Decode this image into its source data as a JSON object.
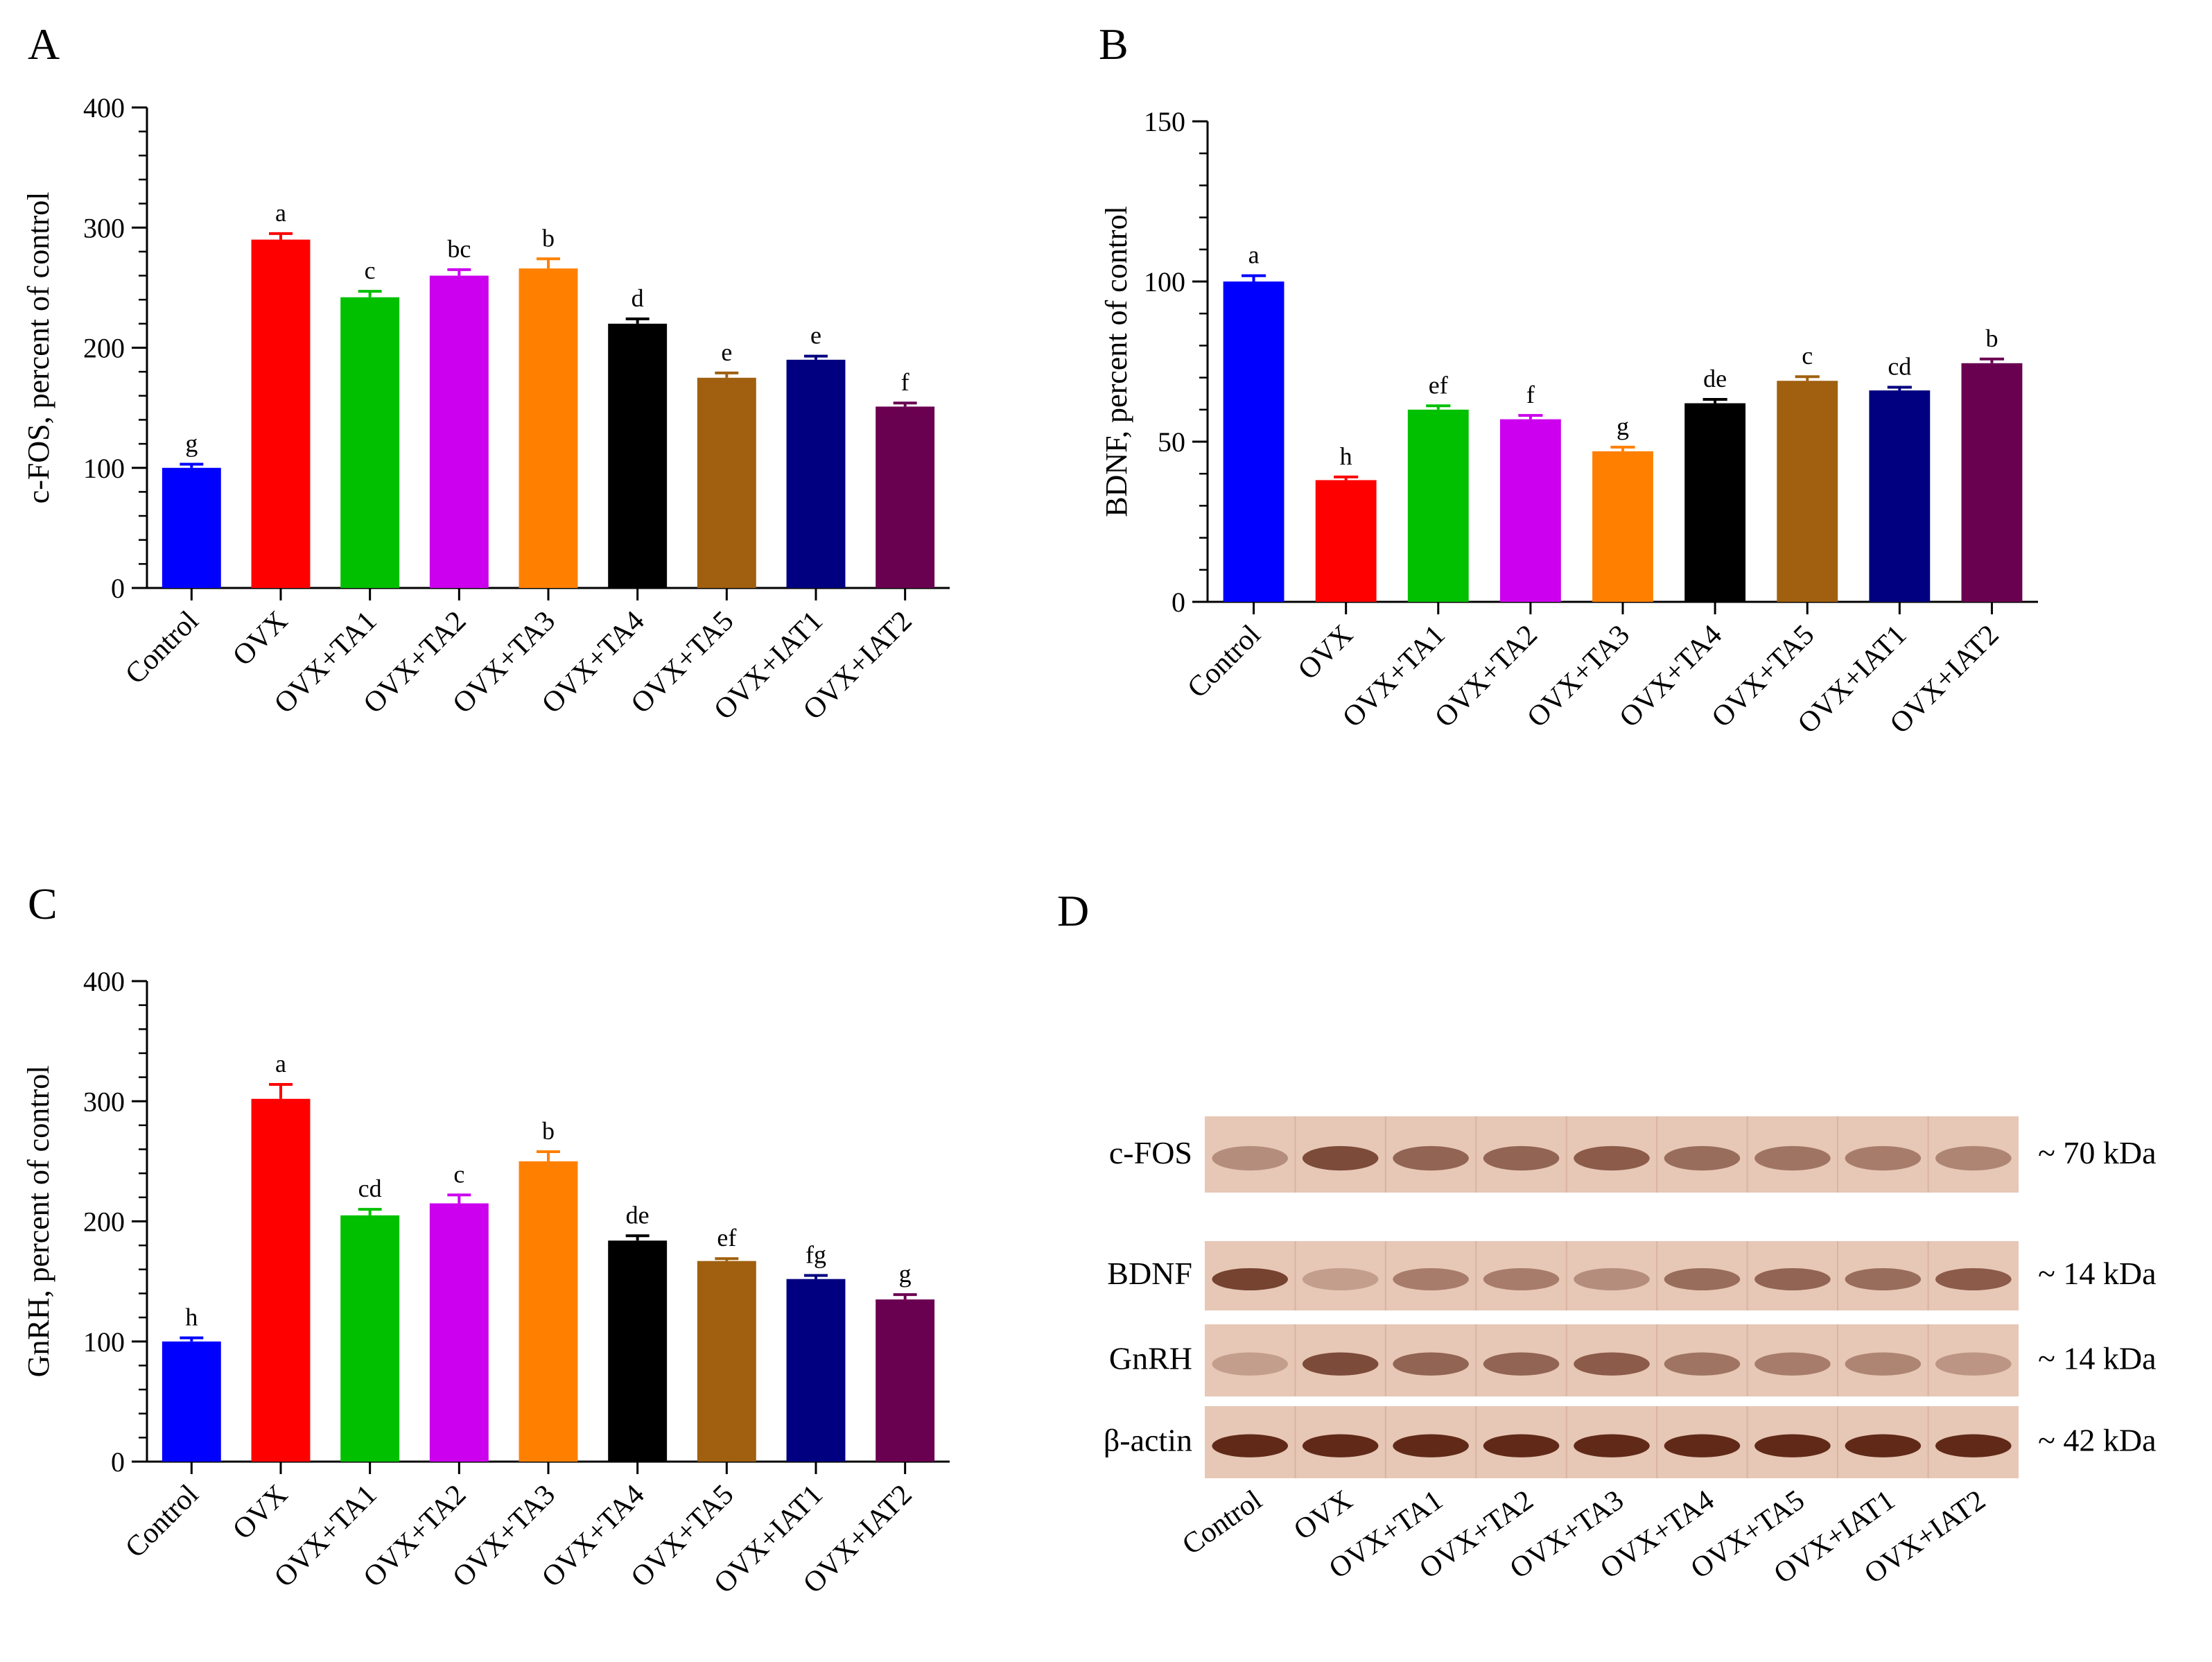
{
  "chart_data": [
    {
      "panel": "A",
      "type": "bar",
      "ylabel": "c-FOS, percent of control",
      "ylim": [
        0,
        400
      ],
      "yticks": [
        0,
        100,
        200,
        300,
        400
      ],
      "categories": [
        "Control",
        "OVX",
        "OVX+TA1",
        "OVX+TA2",
        "OVX+TA3",
        "OVX+TA4",
        "OVX+TA5",
        "OVX+IAT1",
        "OVX+IAT2"
      ],
      "values": [
        100,
        290,
        242,
        260,
        266,
        220,
        175,
        190,
        151
      ],
      "errors": [
        3,
        5,
        5,
        5,
        8,
        4,
        4,
        3,
        3
      ],
      "significance": [
        "g",
        "a",
        "c",
        "bc",
        "b",
        "d",
        "e",
        "e",
        "f"
      ],
      "colors": [
        "#0000ff",
        "#ff0000",
        "#00c000",
        "#cc00ee",
        "#ff8000",
        "#000000",
        "#a0600f",
        "#000080",
        "#6a0050"
      ]
    },
    {
      "panel": "B",
      "type": "bar",
      "ylabel": "BDNF, percent of control",
      "ylim": [
        0,
        150
      ],
      "yticks": [
        0,
        50,
        100,
        150
      ],
      "categories": [
        "Control",
        "OVX",
        "OVX+TA1",
        "OVX+TA2",
        "OVX+TA3",
        "OVX+TA4",
        "OVX+TA5",
        "OVX+IAT1",
        "OVX+IAT2"
      ],
      "values": [
        100,
        38,
        60,
        57,
        47,
        62,
        69,
        66,
        74.5
      ],
      "errors": [
        1.8,
        1,
        1.2,
        1.2,
        1.3,
        1.2,
        1.3,
        1,
        1.3
      ],
      "significance": [
        "a",
        "h",
        "ef",
        "f",
        "g",
        "de",
        "c",
        "cd",
        "b"
      ],
      "colors": [
        "#0000ff",
        "#ff0000",
        "#00c000",
        "#cc00ee",
        "#ff8000",
        "#000000",
        "#a0600f",
        "#000080",
        "#6a0050"
      ]
    },
    {
      "panel": "C",
      "type": "bar",
      "ylabel": "GnRH, percent of control",
      "ylim": [
        0,
        400
      ],
      "yticks": [
        0,
        100,
        200,
        300,
        400
      ],
      "categories": [
        "Control",
        "OVX",
        "OVX+TA1",
        "OVX+TA2",
        "OVX+TA3",
        "OVX+TA4",
        "OVX+TA5",
        "OVX+IAT1",
        "OVX+IAT2"
      ],
      "values": [
        100,
        302,
        205,
        215,
        250,
        184,
        167,
        152,
        135
      ],
      "errors": [
        3,
        12,
        5,
        7,
        8,
        4,
        2,
        3,
        4
      ],
      "significance": [
        "h",
        "a",
        "cd",
        "c",
        "b",
        "de",
        "ef",
        "fg",
        "g"
      ],
      "colors": [
        "#0000ff",
        "#ff0000",
        "#00c000",
        "#cc00ee",
        "#ff8000",
        "#000000",
        "#a0600f",
        "#000080",
        "#6a0050"
      ]
    }
  ],
  "blot": {
    "panel": "D",
    "rows": [
      {
        "label": "c-FOS",
        "kda": "~ 70 kDa",
        "intensities": [
          0.35,
          0.75,
          0.6,
          0.6,
          0.65,
          0.55,
          0.5,
          0.45,
          0.4
        ]
      },
      {
        "label": "BDNF",
        "kda": "~ 14 kDa",
        "intensities": [
          0.8,
          0.25,
          0.45,
          0.45,
          0.35,
          0.55,
          0.6,
          0.55,
          0.65
        ]
      },
      {
        "label": "GnRH",
        "kda": "~ 14 kDa",
        "intensities": [
          0.25,
          0.75,
          0.6,
          0.6,
          0.65,
          0.5,
          0.45,
          0.4,
          0.3
        ]
      },
      {
        "label": "β-actin",
        "kda": "~ 42 kDa",
        "intensities": [
          0.95,
          0.95,
          0.95,
          0.95,
          0.95,
          0.95,
          0.95,
          0.95,
          0.95
        ]
      }
    ],
    "lanes": [
      "Control",
      "OVX",
      "OVX+TA1",
      "OVX+TA2",
      "OVX+TA3",
      "OVX+TA4",
      "OVX+TA5",
      "OVX+IAT1",
      "OVX+IAT2"
    ]
  }
}
